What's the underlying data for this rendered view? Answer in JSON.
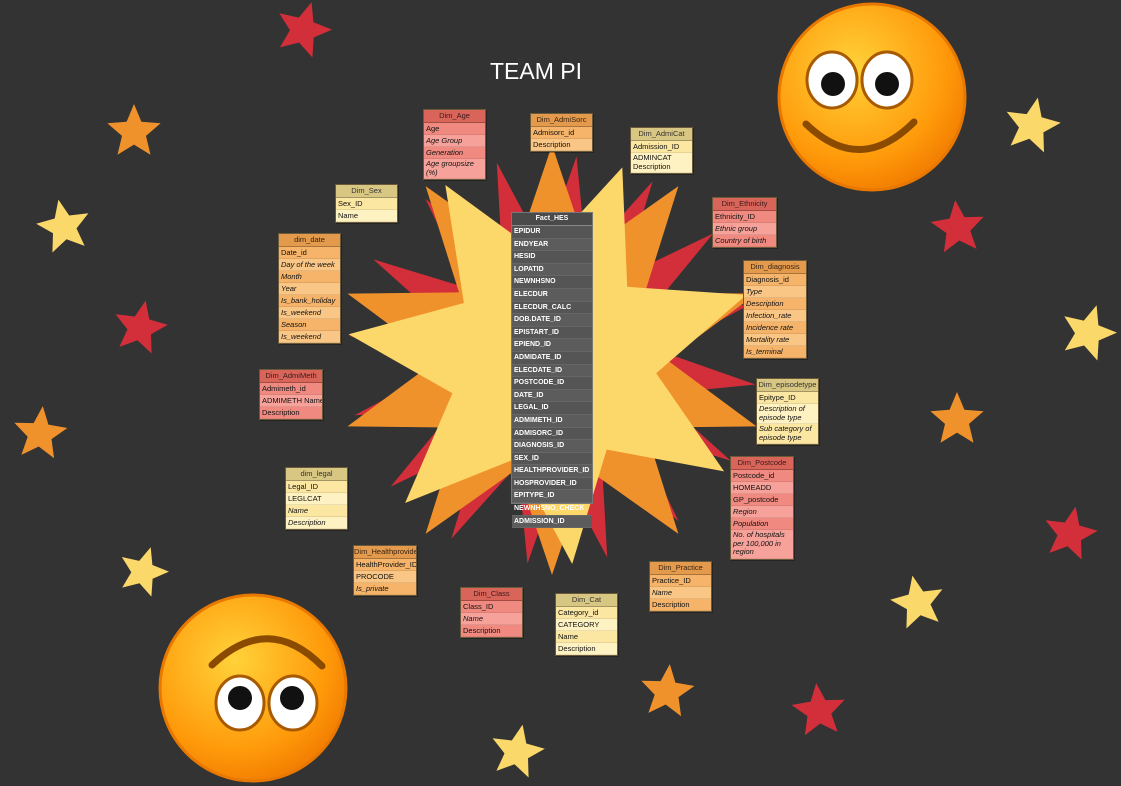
{
  "title": "TEAM PI",
  "colors": {
    "background": "#333333",
    "red_star": "#d32f3a",
    "orange_star": "#f0922b",
    "yellow_star": "#fbd86a",
    "sun_yellow": "#fcd76a"
  },
  "icons": [
    "smiley-face-icon",
    "upside-down-smiley-icon",
    "star-icon",
    "sunburst-icon"
  ],
  "fact": {
    "title": "Fact_HES",
    "fields": [
      "EPIDUR",
      "ENDYEAR",
      "HESID",
      "LOPATID",
      "NEWNHSNO",
      "ELECDUR",
      "ELECDUR_CALC",
      "DOB.DATE_ID",
      "EPISTART_ID",
      "EPIEND_ID",
      "ADMIDATE_ID",
      "ELECDATE_ID",
      "POSTCODE_ID",
      "DATE_ID",
      "LEGAL_ID",
      "ADMIMETH_ID",
      "ADMISORC_ID",
      "DIAGNOSIS_ID",
      "SEX_ID",
      "HEALTHPROVIDER_ID",
      "HOSPROVIDER_ID",
      "EPITYPE_ID",
      "NEWNHSNO_CHECK",
      "ADMISSION_ID"
    ]
  },
  "dims": {
    "age": {
      "title": "Dim_Age",
      "fields": [
        "Age",
        "Age Group",
        "Generation",
        "Age groupsize (%)"
      ]
    },
    "admisorc": {
      "title": "Dim_AdmiSorc",
      "fields": [
        "Admisorc_id",
        "Description"
      ]
    },
    "admicat": {
      "title": "Dim_AdmiCat",
      "fields": [
        "Admission_ID",
        "ADMINCAT Description"
      ]
    },
    "ethnicity": {
      "title": "Dim_Ethnicity",
      "fields": [
        "Ethnicity_ID",
        "Ethnic group",
        "Country of birth"
      ]
    },
    "diagnosis": {
      "title": "Dim_diagnosis",
      "fields": [
        "Diagnosis_id",
        "Type",
        "Description",
        "Infection_rate",
        "Incidence rate",
        "Mortality rate",
        "Is_terminal"
      ]
    },
    "episodetype": {
      "title": "Dim_episodetype",
      "fields": [
        "Epitype_ID",
        "Description of episode type",
        "Sub category of episode type"
      ]
    },
    "postcode": {
      "title": "Dim_Postcode",
      "fields": [
        "Postcode_id",
        "HOMEADD",
        "GP_postcode",
        "Region",
        "Population",
        "No. of hospitals per 100,000 in region"
      ]
    },
    "practice": {
      "title": "Dim_Practice",
      "fields": [
        "Practice_ID",
        "Name",
        "Description"
      ]
    },
    "cat": {
      "title": "Dim_Cat",
      "fields": [
        "Category_id",
        "CATEGORY",
        "Name",
        "Description"
      ]
    },
    "class": {
      "title": "Dim_Class",
      "fields": [
        "Class_ID",
        "Name",
        "Description"
      ]
    },
    "healthprovider": {
      "title": "Dim_Healthprovider",
      "fields": [
        "HealthProvider_ID",
        "PROCODE",
        "Is_private"
      ]
    },
    "legal": {
      "title": "dim_legal",
      "fields": [
        "Legal_ID",
        "LEGLCAT",
        "Name",
        "Description"
      ]
    },
    "admimeth": {
      "title": "Dim_AdmiMeth",
      "fields": [
        "Admimeth_id",
        "ADMIMETH Name",
        "Description"
      ]
    },
    "date": {
      "title": "dim_date",
      "fields": [
        "Date_id",
        "Day of the week",
        "Month",
        "Year",
        "Is_bank_holiday",
        "Is_weekend",
        "Season",
        "Is_weekend"
      ]
    },
    "sex": {
      "title": "Dim_Sex",
      "fields": [
        "Sex_ID",
        "Name"
      ]
    }
  }
}
